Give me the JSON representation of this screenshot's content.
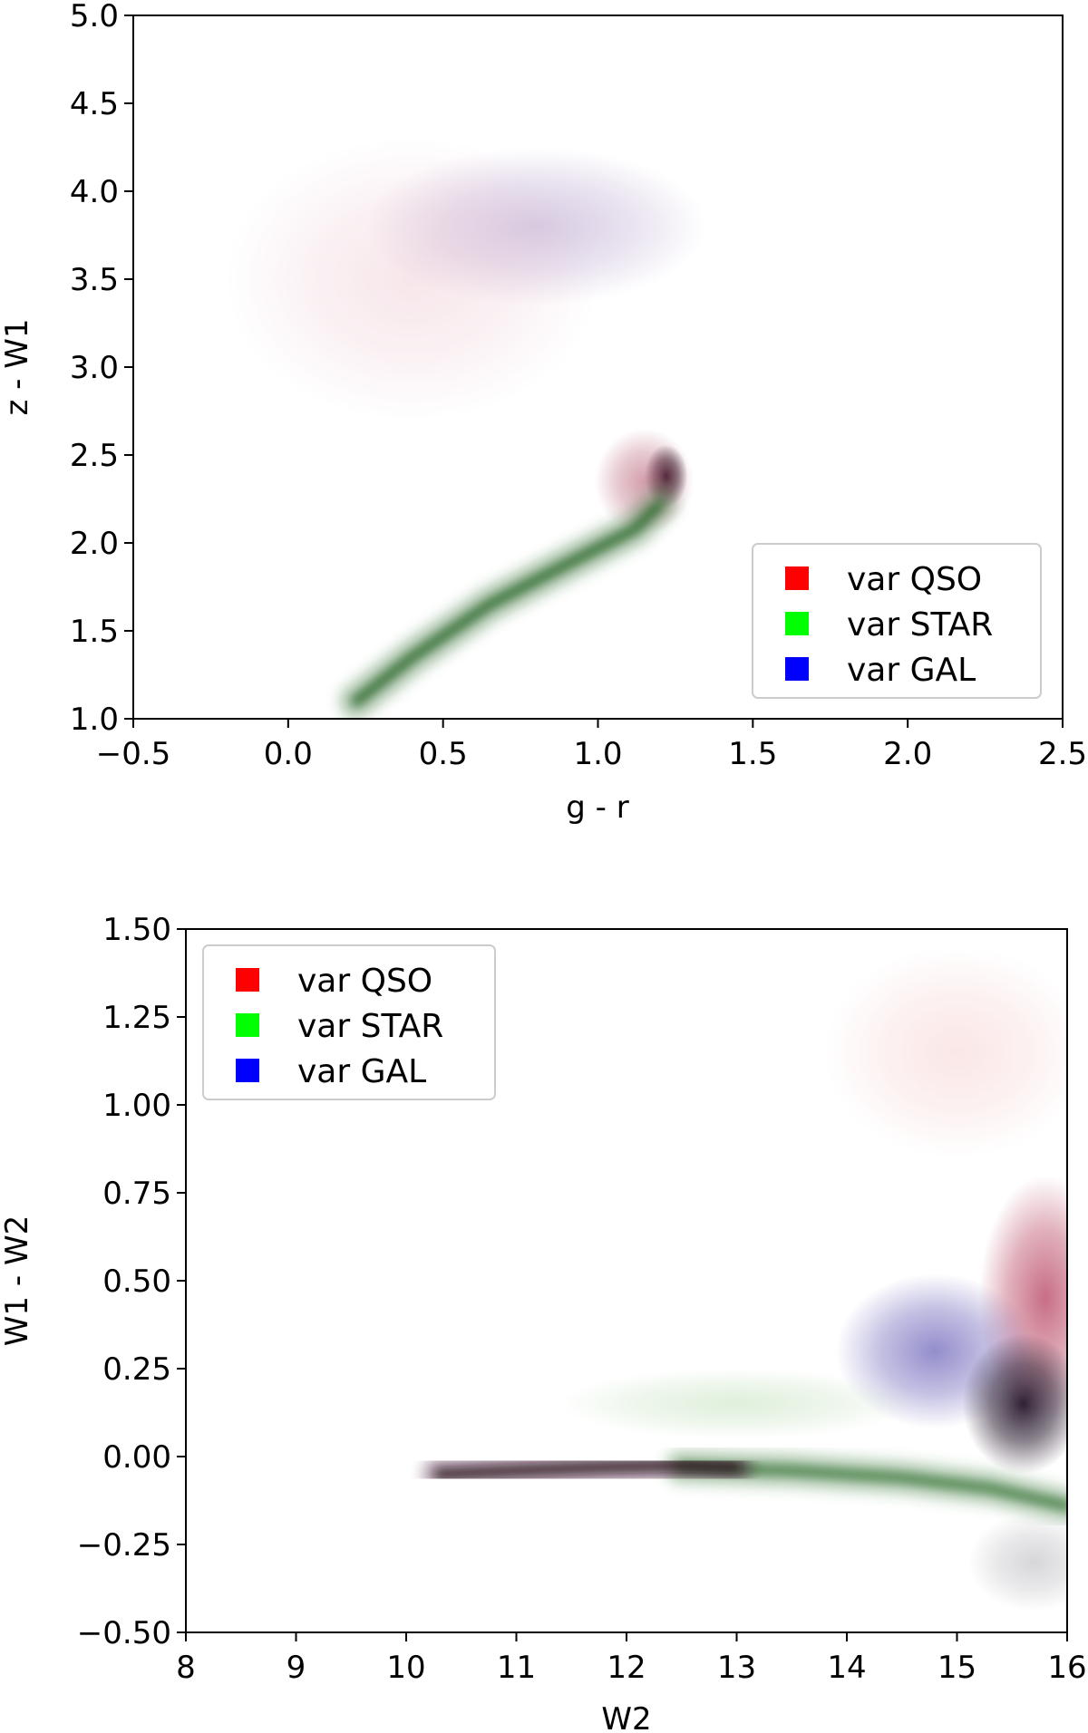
{
  "chart_data": [
    {
      "type": "heatmap",
      "title": "",
      "xlabel": "g - r",
      "ylabel": "z - W1",
      "xlim": [
        -0.5,
        2.5
      ],
      "ylim": [
        1.0,
        5.0
      ],
      "xticks": [
        -0.5,
        0.0,
        0.5,
        1.0,
        1.5,
        2.0,
        2.5
      ],
      "xtick_labels": [
        "−0.5",
        "0.0",
        "0.5",
        "1.0",
        "1.5",
        "2.0",
        "2.5"
      ],
      "yticks": [
        1.0,
        1.5,
        2.0,
        2.5,
        3.0,
        3.5,
        4.0,
        4.5,
        5.0
      ],
      "ytick_labels": [
        "1.0",
        "1.5",
        "2.0",
        "2.5",
        "3.0",
        "3.5",
        "4.0",
        "4.5",
        "5.0"
      ],
      "grid": false,
      "legend_position": "lower-right",
      "series": [
        {
          "name": "var QSO",
          "color": "#ff0000"
        },
        {
          "name": "var STAR",
          "color": "#00ff00"
        },
        {
          "name": "var GAL",
          "color": "#0000ff"
        }
      ],
      "density_features": [
        {
          "label": "QSO / GAL cloud",
          "color": "#a48ac0",
          "center": [
            0.8,
            3.8
          ],
          "spread": [
            0.55,
            0.45
          ],
          "peak": 0.45
        },
        {
          "label": "pink halo",
          "color": "#e8b8c4",
          "center": [
            0.4,
            3.5
          ],
          "spread": [
            0.6,
            0.8
          ],
          "peak": 0.35
        },
        {
          "label": "dense core",
          "color": "#1a0a1a",
          "center": [
            1.22,
            2.38
          ],
          "spread": [
            0.07,
            0.18
          ],
          "peak": 0.95
        },
        {
          "label": "core halo",
          "color": "#b05068",
          "center": [
            1.15,
            2.35
          ],
          "spread": [
            0.16,
            0.3
          ],
          "peak": 0.55
        },
        {
          "label": "stellar locus",
          "color": "#2d6a2d",
          "path": [
            [
              0.22,
              1.1
            ],
            [
              0.4,
              1.35
            ],
            [
              0.65,
              1.65
            ],
            [
              0.9,
              1.88
            ],
            [
              1.12,
              2.08
            ],
            [
              1.2,
              2.22
            ]
          ],
          "peak": 0.9
        }
      ]
    },
    {
      "type": "heatmap",
      "title": "",
      "xlabel": "W2",
      "ylabel": "W1 - W2",
      "xlim": [
        8,
        16
      ],
      "ylim": [
        -0.5,
        1.5
      ],
      "xticks": [
        8,
        9,
        10,
        11,
        12,
        13,
        14,
        15,
        16
      ],
      "xtick_labels": [
        "8",
        "9",
        "10",
        "11",
        "12",
        "13",
        "14",
        "15",
        "16"
      ],
      "yticks": [
        -0.5,
        -0.25,
        0.0,
        0.25,
        0.5,
        0.75,
        1.0,
        1.25,
        1.5
      ],
      "ytick_labels": [
        "−0.50",
        "−0.25",
        "0.00",
        "0.25",
        "0.50",
        "0.75",
        "1.00",
        "1.25",
        "1.50"
      ],
      "grid": false,
      "legend_position": "upper-left",
      "series": [
        {
          "name": "var QSO",
          "color": "#ff0000"
        },
        {
          "name": "var STAR",
          "color": "#00ff00"
        },
        {
          "name": "var GAL",
          "color": "#0000ff"
        }
      ],
      "density_features": [
        {
          "label": "QSO upper cloud",
          "color": "#f2b8b8",
          "center": [
            15.0,
            1.15
          ],
          "spread": [
            1.2,
            0.3
          ],
          "peak": 0.35
        },
        {
          "label": "QSO red wing",
          "color": "#b03050",
          "center": [
            15.8,
            0.45
          ],
          "spread": [
            0.6,
            0.35
          ],
          "peak": 0.7
        },
        {
          "label": "GAL cloud",
          "color": "#5a50b0",
          "center": [
            14.8,
            0.3
          ],
          "spread": [
            0.9,
            0.22
          ],
          "peak": 0.65
        },
        {
          "label": "dense core",
          "color": "#1a0a20",
          "center": [
            15.6,
            0.15
          ],
          "spread": [
            0.55,
            0.2
          ],
          "peak": 0.9
        },
        {
          "label": "star sheet upper",
          "color": "#b8dcb0",
          "center": [
            13.0,
            0.15
          ],
          "spread": [
            1.6,
            0.1
          ],
          "peak": 0.45
        },
        {
          "label": "star band",
          "color": "#3e7a3e",
          "path": [
            [
              12.5,
              -0.03
            ],
            [
              13.5,
              -0.04
            ],
            [
              14.5,
              -0.06
            ],
            [
              15.3,
              -0.09
            ],
            [
              16.0,
              -0.14
            ]
          ],
          "peak": 0.85
        },
        {
          "label": "thin streak",
          "color": "#2a0e1c",
          "path": [
            [
              10.3,
              -0.05
            ],
            [
              11.0,
              -0.04
            ],
            [
              11.8,
              -0.03
            ],
            [
              12.5,
              -0.025
            ],
            [
              13.0,
              -0.03
            ]
          ],
          "peak": 0.85
        },
        {
          "label": "lower wing",
          "color": "#9a9aa2",
          "center": [
            15.7,
            -0.3
          ],
          "spread": [
            0.6,
            0.14
          ],
          "peak": 0.4
        }
      ]
    }
  ]
}
